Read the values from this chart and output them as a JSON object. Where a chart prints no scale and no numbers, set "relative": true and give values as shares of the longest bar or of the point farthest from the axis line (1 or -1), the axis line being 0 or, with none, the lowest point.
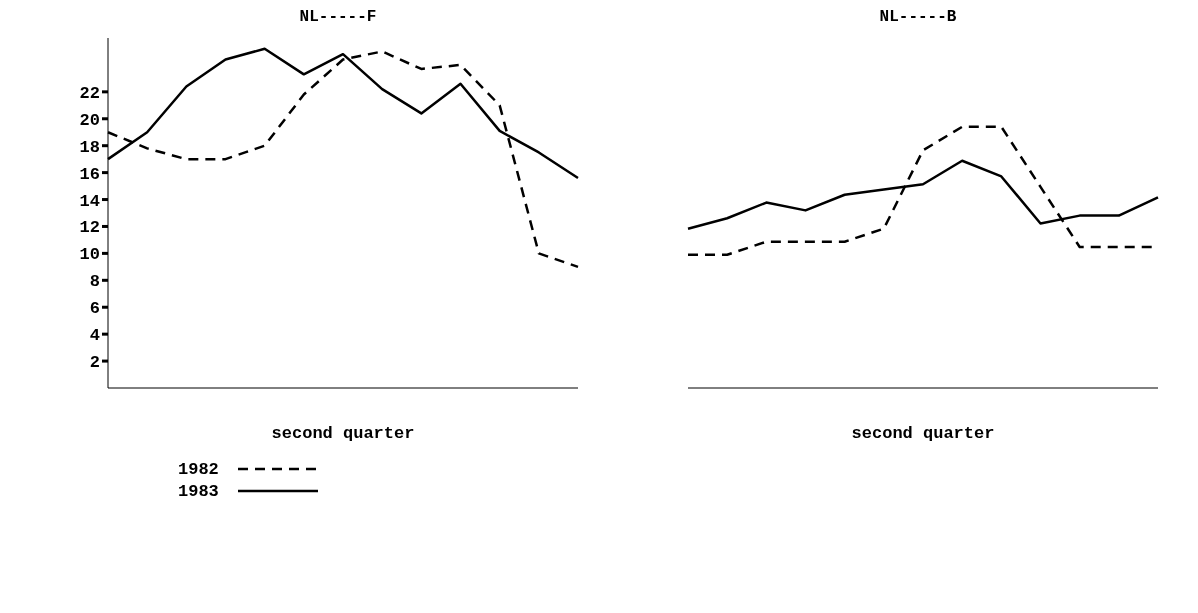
{
  "chart_data": [
    {
      "type": "line",
      "title": "NL-----F",
      "xlabel": "second quarter",
      "categories": [
        null,
        null,
        null,
        null,
        null,
        null,
        null,
        null,
        null,
        null,
        null,
        null,
        null
      ],
      "ylim": [
        0,
        26
      ],
      "yticks": [
        2,
        4,
        6,
        8,
        10,
        12,
        14,
        16,
        18,
        20,
        22
      ],
      "tick_labels": "y",
      "grid": false,
      "legend": "bottom",
      "marker": "none",
      "series": [
        {
          "name": "1982",
          "color": "#000000",
          "line_style": "dashed",
          "values": [
            19.0,
            17.8,
            17.0,
            17.0,
            18.0,
            21.8,
            24.4,
            25.0,
            23.7,
            24.0,
            21.0,
            10.0,
            9.0
          ]
        },
        {
          "name": "1983",
          "color": "#000000",
          "line_style": "solid",
          "values": [
            17.0,
            19.0,
            22.4,
            24.4,
            25.2,
            23.3,
            24.8,
            22.2,
            20.4,
            22.6,
            19.1,
            17.5,
            15.6
          ]
        }
      ]
    },
    {
      "type": "line",
      "title": "NL-----B",
      "xlabel": "second quarter",
      "categories": [
        null,
        null,
        null,
        null,
        null,
        null,
        null,
        null,
        null,
        null,
        null,
        null,
        null
      ],
      "relative": true,
      "tick_labels": false,
      "grid": false,
      "marker": "none",
      "series": [
        {
          "color": "#000000",
          "line_style": "dashed",
          "values": [
            0.51,
            0.51,
            0.56,
            0.56,
            0.56,
            0.61,
            0.91,
            1,
            1,
            0.77,
            0.54,
            0.54,
            0.54
          ]
        },
        {
          "color": "#000000",
          "line_style": "solid",
          "values": [
            0.61,
            0.65,
            0.71,
            0.68,
            0.74,
            0.76,
            0.78,
            0.87,
            0.81,
            0.63,
            0.66,
            0.66,
            0.73
          ]
        }
      ]
    }
  ]
}
